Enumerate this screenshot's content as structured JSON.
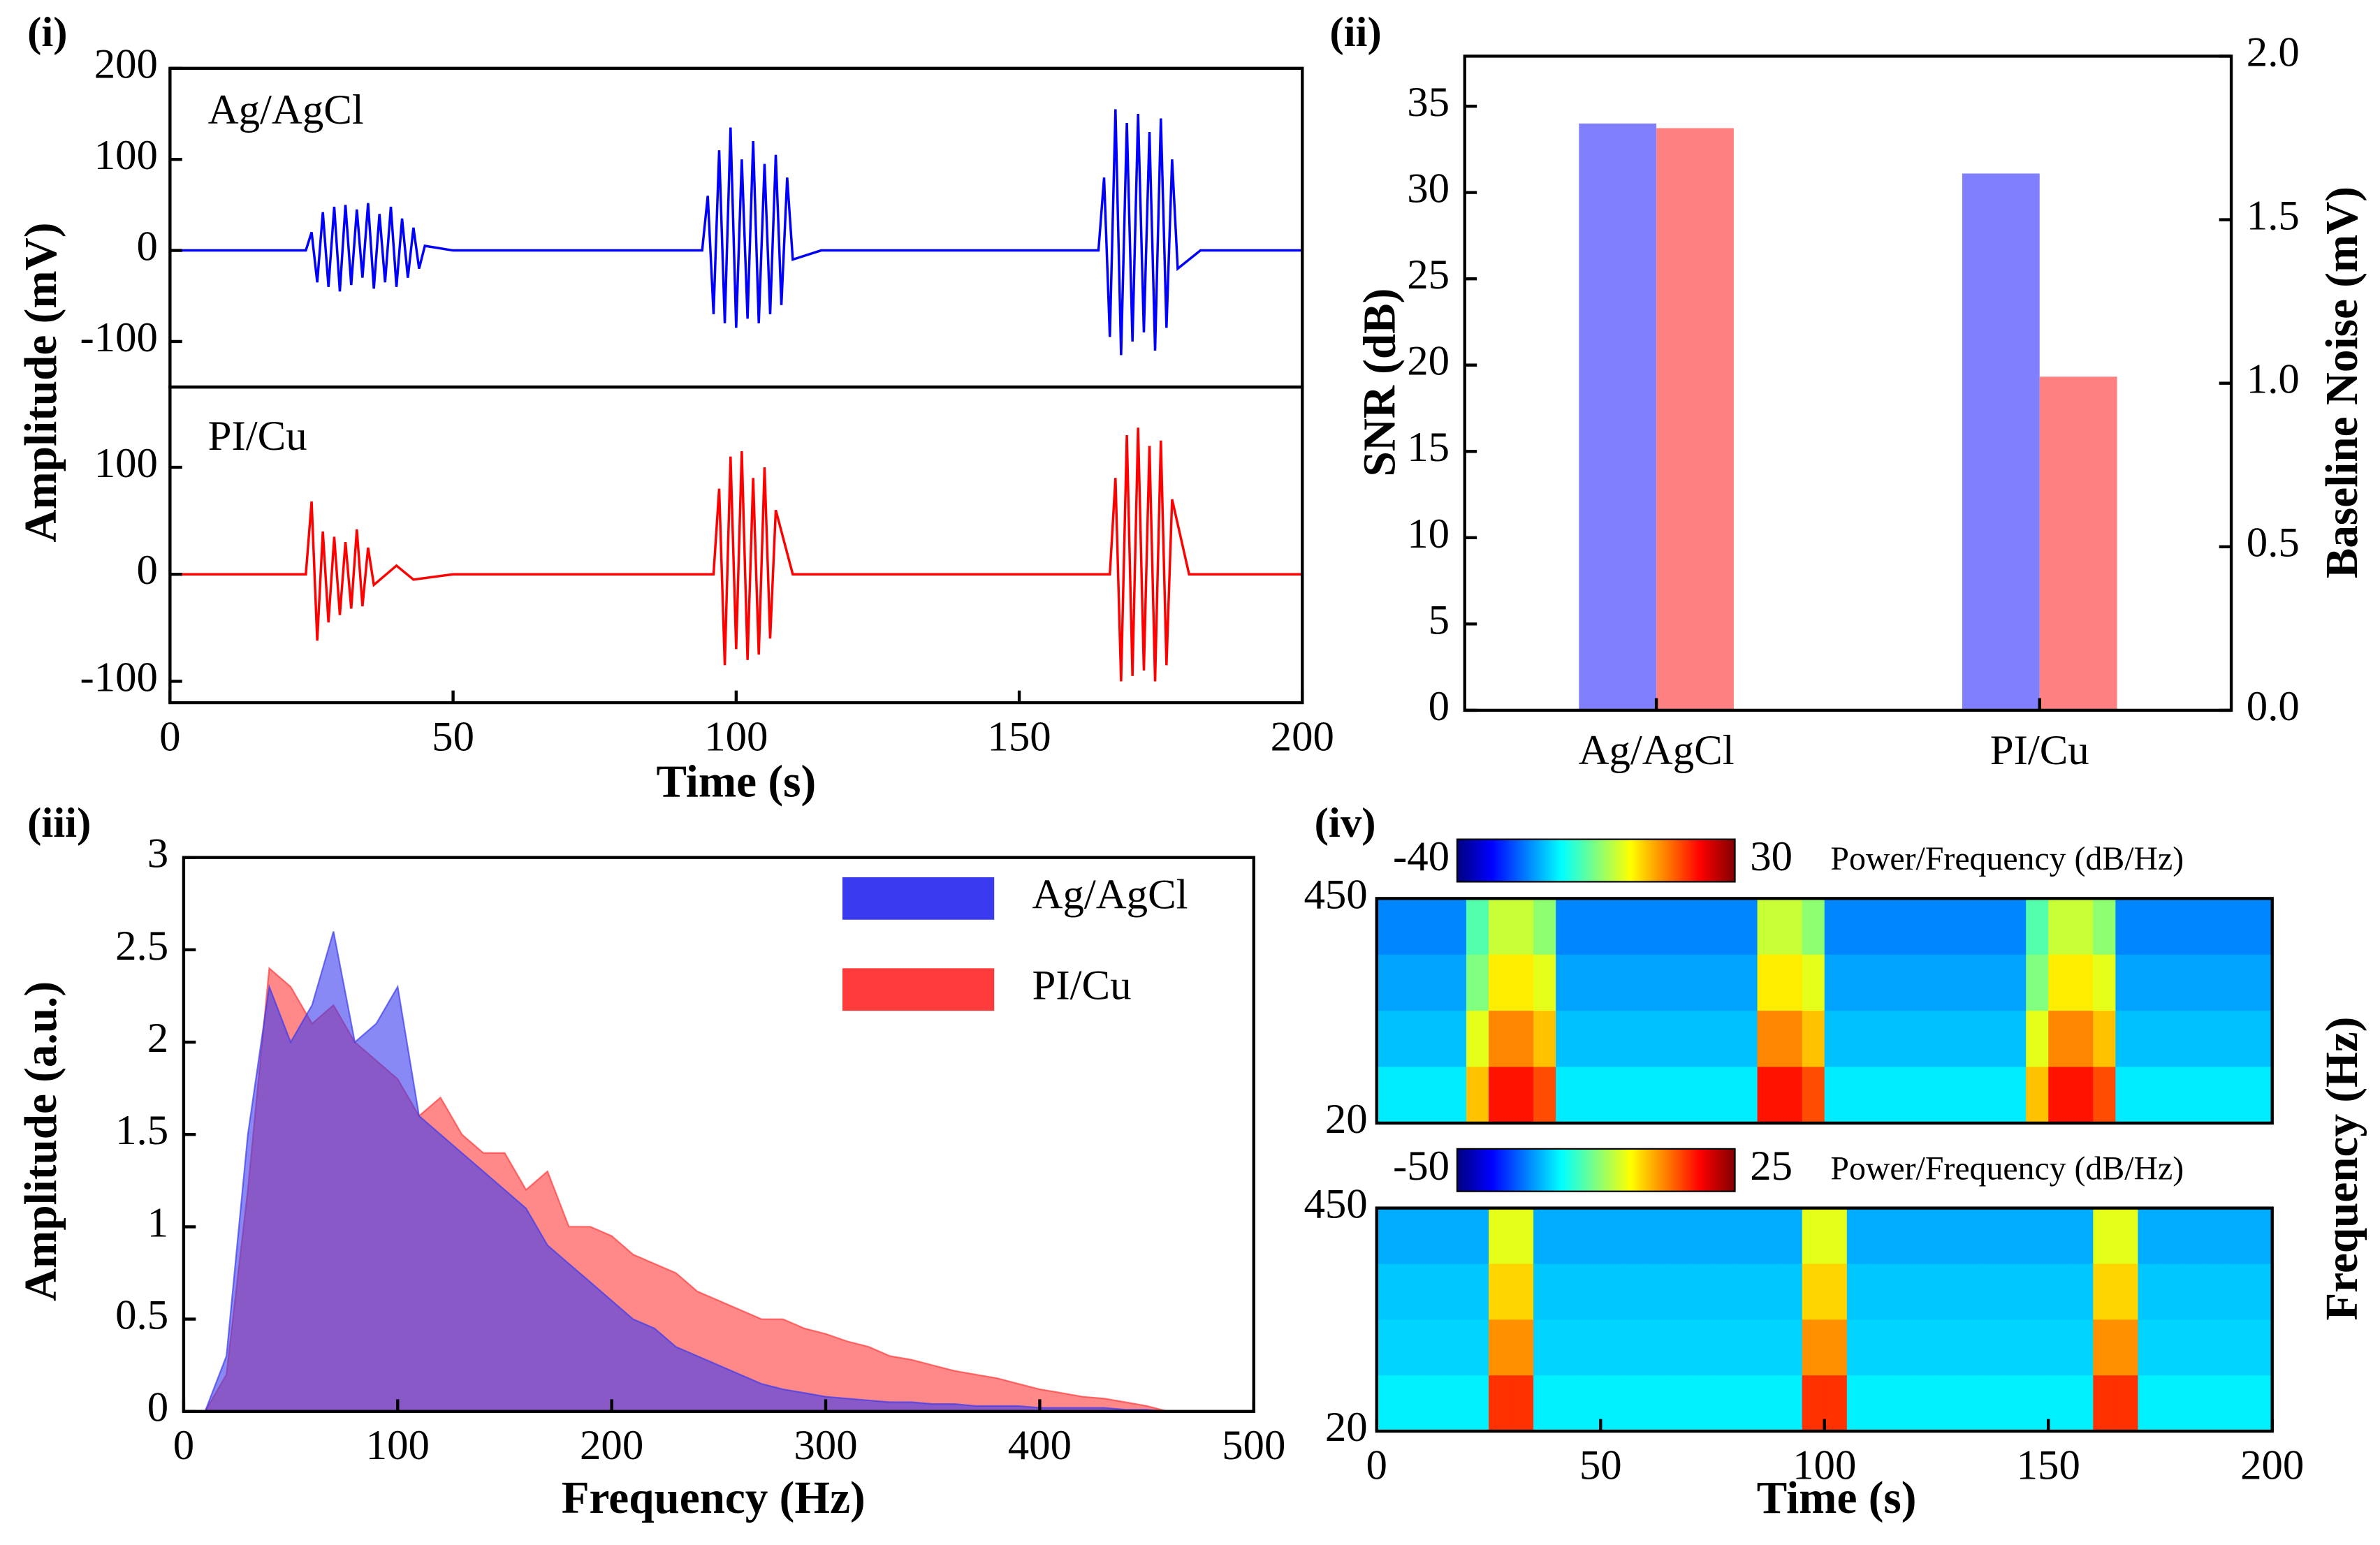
{
  "chart_data": [
    {
      "type": "line",
      "label": "(i)",
      "xlabel": "Time (s)",
      "ylabel": "Amplitude (mV)",
      "xlim": [
        0,
        200
      ],
      "xticks": [
        0,
        50,
        100,
        150,
        200
      ],
      "subplots": [
        {
          "title": "Ag/AgCl",
          "color": "#0000ff",
          "ylim": [
            -150,
            200
          ],
          "yticks": [
            -100,
            0,
            100,
            200
          ],
          "x": [
            0,
            10,
            20,
            24,
            25,
            26,
            27,
            28,
            29,
            30,
            31,
            32,
            33,
            34,
            35,
            36,
            37,
            38,
            39,
            40,
            41,
            42,
            43,
            44,
            45,
            50,
            60,
            70,
            80,
            90,
            94,
            95,
            96,
            97,
            98,
            99,
            100,
            101,
            102,
            103,
            104,
            105,
            106,
            107,
            108,
            109,
            110,
            115,
            130,
            145,
            160,
            164,
            165,
            166,
            167,
            168,
            169,
            170,
            171,
            172,
            173,
            174,
            175,
            176,
            177,
            178,
            182,
            190,
            200
          ],
          "values": [
            0,
            0,
            0,
            0,
            20,
            -35,
            42,
            -40,
            48,
            -45,
            50,
            -38,
            45,
            -30,
            52,
            -42,
            40,
            -35,
            48,
            -40,
            35,
            -30,
            25,
            -20,
            5,
            0,
            0,
            0,
            0,
            0,
            0,
            60,
            -70,
            110,
            -80,
            135,
            -85,
            100,
            -75,
            120,
            -80,
            95,
            -70,
            105,
            -60,
            80,
            -10,
            0,
            0,
            0,
            0,
            0,
            80,
            -95,
            155,
            -115,
            140,
            -100,
            150,
            -90,
            130,
            -110,
            145,
            -85,
            100,
            -20,
            0,
            0,
            0
          ]
        },
        {
          "title": "PI/Cu",
          "color": "#ff0000",
          "ylim": [
            -120,
            175
          ],
          "yticks": [
            -100,
            0,
            100
          ],
          "x": [
            0,
            10,
            20,
            24,
            25,
            26,
            27,
            28,
            29,
            30,
            31,
            32,
            33,
            34,
            35,
            36,
            40,
            43,
            50,
            60,
            70,
            80,
            90,
            96,
            97,
            98,
            99,
            100,
            101,
            102,
            103,
            104,
            105,
            106,
            107,
            110,
            120,
            130,
            140,
            150,
            160,
            166,
            167,
            168,
            169,
            170,
            171,
            172,
            173,
            174,
            175,
            176,
            177,
            180,
            190,
            200
          ],
          "values": [
            0,
            0,
            0,
            0,
            68,
            -62,
            40,
            -45,
            35,
            -38,
            30,
            -32,
            42,
            -30,
            25,
            -10,
            8,
            -5,
            0,
            0,
            0,
            0,
            0,
            0,
            80,
            -85,
            110,
            -70,
            115,
            -80,
            90,
            -75,
            100,
            -60,
            60,
            0,
            0,
            0,
            0,
            0,
            0,
            0,
            90,
            -100,
            130,
            -95,
            137,
            -90,
            120,
            -100,
            125,
            -85,
            70,
            0,
            0,
            0
          ]
        }
      ]
    },
    {
      "type": "bar",
      "label": "(ii)",
      "categories": [
        "Ag/AgCl",
        "PI/Cu"
      ],
      "ylabel": "SNR (dB)",
      "y2label": "Baseline Noise (mV)",
      "axis_colors": [
        "#2b2bff",
        "#ff0000"
      ],
      "ylim": [
        0,
        37.9
      ],
      "yticks": [
        0,
        5,
        10,
        15,
        20,
        25,
        30,
        35
      ],
      "y2lim": [
        0,
        2
      ],
      "y2ticks": [
        {
          "value": 0,
          "label": "0.0"
        },
        0.5,
        {
          "value": 1,
          "label": "1.0"
        },
        1.5,
        {
          "value": 2,
          "label": "2.0"
        }
      ],
      "series": [
        {
          "color": "#8080ff",
          "values": [
            34.0,
            31.1
          ]
        },
        {
          "color": "#ff8080",
          "values": [
            1.78,
            1.02
          ],
          "axis": "y2"
        }
      ]
    },
    {
      "type": "area",
      "label": "(iii)",
      "xlabel": "Frequency (Hz)",
      "ylabel": "Amplitude (a.u.)",
      "xlim": [
        0,
        500
      ],
      "xticks": [
        0,
        100,
        200,
        300,
        400,
        500
      ],
      "ylim": [
        0,
        3
      ],
      "yticks": [
        0,
        0.5,
        1,
        1.5,
        2,
        2.5,
        3
      ],
      "legend": "upper right",
      "x": [
        0,
        10,
        20,
        30,
        40,
        50,
        60,
        70,
        80,
        90,
        100,
        110,
        120,
        130,
        140,
        150,
        160,
        170,
        180,
        190,
        200,
        210,
        220,
        230,
        240,
        250,
        260,
        270,
        280,
        290,
        300,
        310,
        320,
        330,
        340,
        350,
        360,
        370,
        380,
        390,
        400,
        410,
        420,
        430,
        440,
        450,
        460,
        470,
        480,
        490,
        500
      ],
      "series": [
        {
          "name": "PI/Cu",
          "color": "#ff3b3b",
          "values": [
            0,
            0,
            0.2,
            1.2,
            2.4,
            2.3,
            2.1,
            2.2,
            2.0,
            1.9,
            1.8,
            1.6,
            1.7,
            1.5,
            1.4,
            1.4,
            1.2,
            1.3,
            1.0,
            1.0,
            0.95,
            0.85,
            0.8,
            0.75,
            0.65,
            0.6,
            0.55,
            0.5,
            0.5,
            0.45,
            0.42,
            0.38,
            0.35,
            0.3,
            0.28,
            0.25,
            0.22,
            0.2,
            0.18,
            0.15,
            0.12,
            0.1,
            0.08,
            0.07,
            0.05,
            0.03,
            0,
            0,
            0,
            0,
            0
          ]
        },
        {
          "name": "Ag/AgCl",
          "color": "#3a3af0",
          "values": [
            0,
            0,
            0.3,
            1.5,
            2.3,
            2.0,
            2.2,
            2.6,
            2.0,
            2.1,
            2.3,
            1.6,
            1.5,
            1.4,
            1.3,
            1.2,
            1.1,
            0.9,
            0.8,
            0.7,
            0.6,
            0.5,
            0.45,
            0.35,
            0.3,
            0.25,
            0.2,
            0.15,
            0.12,
            0.1,
            0.08,
            0.07,
            0.06,
            0.05,
            0.05,
            0.04,
            0.04,
            0.03,
            0.03,
            0.03,
            0.02,
            0.02,
            0.02,
            0.02,
            0.01,
            0.01,
            0,
            0,
            0,
            0,
            0
          ]
        }
      ]
    },
    {
      "type": "heatmap",
      "label": "(iv)",
      "xlabel": "Time (s)",
      "ylabel": "Frequency (Hz)",
      "xlim": [
        0,
        200
      ],
      "xticks": [
        0,
        50,
        100,
        150,
        200
      ],
      "maps": [
        {
          "clim": [
            -40,
            30
          ],
          "colorbar_label": "Power/Frequency (dB/Hz)",
          "ylim": [
            20,
            450
          ],
          "yticks": [
            20,
            450
          ],
          "z": [
            [
              -22,
              -22,
              -22,
              -22,
              -8,
              0,
              0,
              -4,
              -22,
              -22,
              -22,
              -22,
              -22,
              -22,
              -22,
              -22,
              -22,
              0,
              0,
              -4,
              -22,
              -22,
              -22,
              -22,
              -22,
              -22,
              -22,
              -22,
              -22,
              -8,
              0,
              0,
              -4,
              -22,
              -22,
              -22,
              -22,
              -22,
              -22,
              -22
            ],
            [
              -20,
              -20,
              -20,
              -20,
              -5,
              5,
              5,
              2,
              -20,
              -20,
              -20,
              -20,
              -20,
              -20,
              -20,
              -20,
              -20,
              5,
              5,
              2,
              -20,
              -20,
              -20,
              -20,
              -20,
              -20,
              -20,
              -20,
              -20,
              -5,
              5,
              5,
              2,
              -20,
              -20,
              -20,
              -20,
              -20,
              -20,
              -20
            ],
            [
              -18,
              -18,
              -18,
              -18,
              2,
              12,
              12,
              8,
              -18,
              -18,
              -18,
              -18,
              -18,
              -18,
              -18,
              -18,
              -18,
              12,
              12,
              8,
              -18,
              -18,
              -18,
              -18,
              -18,
              -18,
              -18,
              -18,
              -18,
              2,
              12,
              12,
              8,
              -18,
              -18,
              -18,
              -18,
              -18,
              -18,
              -18
            ],
            [
              -15,
              -15,
              -15,
              -15,
              8,
              20,
              20,
              16,
              -15,
              -15,
              -15,
              -15,
              -15,
              -15,
              -15,
              -15,
              -15,
              20,
              20,
              16,
              -15,
              -15,
              -15,
              -15,
              -15,
              -15,
              -15,
              -15,
              -15,
              8,
              20,
              20,
              16,
              -15,
              -15,
              -15,
              -15,
              -15,
              -15,
              -15
            ]
          ]
        },
        {
          "clim": [
            -50,
            25
          ],
          "colorbar_label": "Power/Frequency (dB/Hz)",
          "ylim": [
            20,
            450
          ],
          "yticks": [
            20,
            450
          ],
          "z": [
            [
              -28,
              -28,
              -28,
              -28,
              -28,
              -5,
              -5,
              -28,
              -28,
              -28,
              -28,
              -28,
              -28,
              -28,
              -28,
              -28,
              -28,
              -28,
              -28,
              -5,
              -5,
              -28,
              -28,
              -28,
              -28,
              -28,
              -28,
              -28,
              -28,
              -28,
              -28,
              -28,
              -5,
              -5,
              -28,
              -28,
              -28,
              -28,
              -28,
              -28
            ],
            [
              -26,
              -26,
              -26,
              -26,
              -26,
              0,
              0,
              -26,
              -26,
              -26,
              -26,
              -26,
              -26,
              -26,
              -26,
              -26,
              -26,
              -26,
              -26,
              0,
              0,
              -26,
              -26,
              -26,
              -26,
              -26,
              -26,
              -26,
              -26,
              -26,
              -26,
              -26,
              0,
              0,
              -26,
              -26,
              -26,
              -26,
              -26,
              -26
            ],
            [
              -25,
              -25,
              -25,
              -25,
              -25,
              5,
              5,
              -25,
              -25,
              -25,
              -25,
              -25,
              -25,
              -25,
              -25,
              -25,
              -25,
              -25,
              -25,
              5,
              5,
              -25,
              -25,
              -25,
              -25,
              -25,
              -25,
              -25,
              -25,
              -25,
              -25,
              -25,
              5,
              5,
              -25,
              -25,
              -25,
              -25,
              -25,
              -25
            ],
            [
              -23,
              -23,
              -23,
              -23,
              -23,
              12,
              12,
              -23,
              -23,
              -23,
              -23,
              -23,
              -23,
              -23,
              -23,
              -23,
              -23,
              -23,
              -23,
              12,
              12,
              -23,
              -23,
              -23,
              -23,
              -23,
              -23,
              -23,
              -23,
              -23,
              -23,
              -23,
              12,
              12,
              -23,
              -23,
              -23,
              -23,
              -23,
              -23
            ]
          ]
        }
      ]
    }
  ]
}
